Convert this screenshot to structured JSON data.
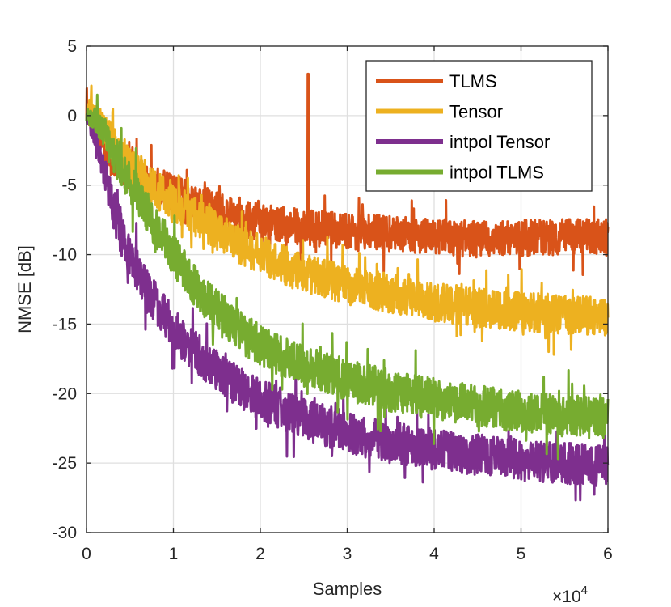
{
  "chart_data": {
    "type": "line",
    "title": "",
    "xlabel": "Samples",
    "ylabel": "NMSE [dB]",
    "x_exponent_base": "×10",
    "x_exponent_power": "4",
    "xlim": [
      0,
      6
    ],
    "ylim": [
      -30,
      5
    ],
    "xticks": [
      0,
      1,
      2,
      3,
      4,
      5,
      6
    ],
    "yticks": [
      5,
      0,
      -5,
      -10,
      -15,
      -20,
      -25,
      -30
    ],
    "grid": true,
    "legend_position": "top-right",
    "series": [
      {
        "name": "TLMS",
        "color": "#D95319",
        "x": [
          0,
          0.05,
          0.1,
          0.2,
          0.3,
          0.5,
          0.75,
          1.0,
          1.25,
          1.5,
          1.75,
          2.0,
          2.5,
          3.0,
          3.5,
          4.0,
          4.5,
          5.0,
          5.5,
          6.0
        ],
        "values": [
          0,
          -0.3,
          -1.2,
          -2.3,
          -3.2,
          -4.0,
          -4.8,
          -5.5,
          -6.1,
          -6.8,
          -7.4,
          -7.7,
          -8.0,
          -8.3,
          -8.5,
          -8.7,
          -8.9,
          -8.8,
          -8.7,
          -8.7
        ],
        "noise_amplitude": 1.3,
        "spike": {
          "x": 2.55,
          "value": 3.0
        }
      },
      {
        "name": "Tensor",
        "color": "#EDB120",
        "x": [
          0,
          0.05,
          0.1,
          0.2,
          0.3,
          0.5,
          0.75,
          1.0,
          1.25,
          1.5,
          1.75,
          2.0,
          2.5,
          3.0,
          3.5,
          4.0,
          4.5,
          5.0,
          5.5,
          6.0
        ],
        "values": [
          0.5,
          0.8,
          0.3,
          -1.0,
          -2.0,
          -3.6,
          -5.0,
          -6.2,
          -7.3,
          -8.3,
          -9.2,
          -10.0,
          -11.3,
          -12.2,
          -12.8,
          -13.4,
          -13.8,
          -14.1,
          -14.3,
          -14.5
        ],
        "noise_amplitude": 1.4
      },
      {
        "name": "intpol Tensor",
        "color": "#7E2F8E",
        "x": [
          0,
          0.1,
          0.2,
          0.3,
          0.4,
          0.5,
          0.75,
          1.0,
          1.25,
          1.5,
          1.75,
          2.0,
          2.5,
          3.0,
          3.5,
          4.0,
          4.5,
          5.0,
          5.5,
          6.0
        ],
        "values": [
          0,
          -1.5,
          -4.0,
          -6.5,
          -8.5,
          -10.2,
          -13.0,
          -15.3,
          -17.0,
          -18.3,
          -19.5,
          -20.4,
          -21.8,
          -22.8,
          -23.5,
          -24.0,
          -24.4,
          -24.8,
          -25.0,
          -25.2
        ],
        "noise_amplitude": 1.5
      },
      {
        "name": "intpol TLMS",
        "color": "#77AC30",
        "x": [
          0,
          0.1,
          0.2,
          0.3,
          0.4,
          0.5,
          0.75,
          1.0,
          1.25,
          1.5,
          1.75,
          2.0,
          2.5,
          3.0,
          3.5,
          4.0,
          4.5,
          5.0,
          5.5,
          6.0
        ],
        "values": [
          0,
          -0.3,
          -1.3,
          -2.5,
          -3.6,
          -4.8,
          -7.5,
          -10.0,
          -12.3,
          -14.0,
          -15.4,
          -16.6,
          -18.0,
          -19.0,
          -19.8,
          -20.4,
          -20.9,
          -21.3,
          -21.6,
          -21.8
        ],
        "noise_amplitude": 1.5
      }
    ]
  }
}
